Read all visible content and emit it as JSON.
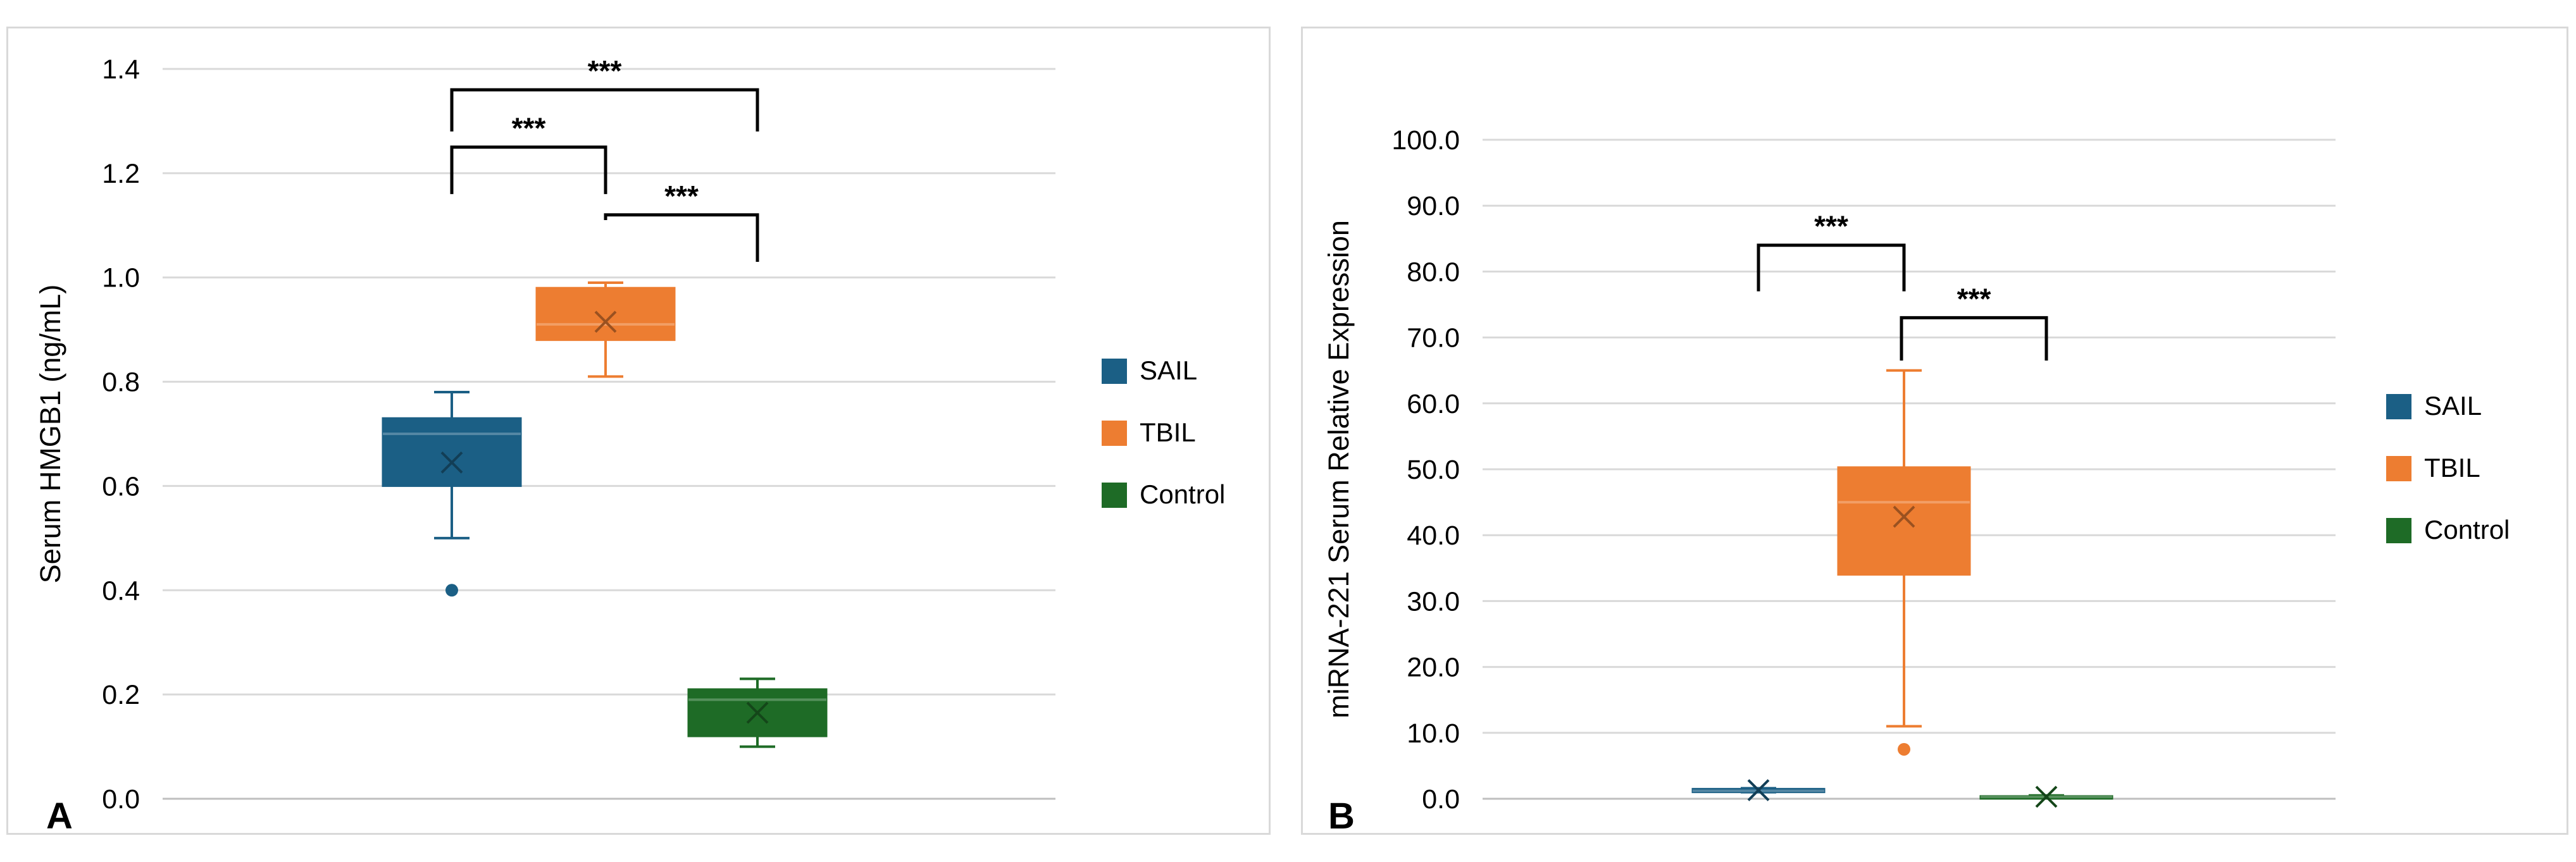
{
  "colors": {
    "SAIL": "#1b5f85",
    "TBIL": "#ed7d31",
    "Control": "#1e6b26"
  },
  "legend": [
    "SAIL",
    "TBIL",
    "Control"
  ],
  "chart_data": [
    {
      "type": "box",
      "panel_label": "A",
      "ylabel": "Serum HMGB1 (ng/mL)",
      "ylim": [
        0,
        1.4
      ],
      "ytick_labels": [
        "0.0",
        "0.2",
        "0.4",
        "0.6",
        "0.8",
        "1.0",
        "1.2",
        "1.4"
      ],
      "yticks": [
        0,
        0.2,
        0.4,
        0.6,
        0.8,
        1.0,
        1.2,
        1.4
      ],
      "grid": true,
      "legend_position": "right",
      "series": [
        {
          "name": "SAIL",
          "whisker_low": 0.5,
          "q1": 0.6,
          "median": 0.7,
          "q3": 0.73,
          "whisker_high": 0.78,
          "mean": 0.645,
          "outliers": [
            0.4
          ]
        },
        {
          "name": "TBIL",
          "whisker_low": 0.81,
          "q1": 0.88,
          "median": 0.91,
          "q3": 0.98,
          "whisker_high": 0.99,
          "mean": 0.915,
          "outliers": []
        },
        {
          "name": "Control",
          "whisker_low": 0.1,
          "q1": 0.12,
          "median": 0.19,
          "q3": 0.21,
          "whisker_high": 0.23,
          "mean": 0.165,
          "outliers": []
        }
      ],
      "significance": [
        {
          "from": 0,
          "to": 1,
          "left_end": 1.16,
          "top": 1.25,
          "right_end": 1.16,
          "label": "***"
        },
        {
          "from": 1,
          "to": 2,
          "left_end": 1.11,
          "top": 1.12,
          "right_end": 1.03,
          "label": "***"
        },
        {
          "from": 0,
          "to": 2,
          "left_end": 1.28,
          "top": 1.36,
          "right_end": 1.28,
          "label": "***"
        }
      ]
    },
    {
      "type": "box",
      "panel_label": "B",
      "ylabel": "miRNA-221 Serum Relative Expression",
      "ylim": [
        0,
        100
      ],
      "ytick_labels": [
        "0.0",
        "10.0",
        "20.0",
        "30.0",
        "40.0",
        "50.0",
        "60.0",
        "70.0",
        "80.0",
        "90.0",
        "100.0"
      ],
      "yticks": [
        0,
        10,
        20,
        30,
        40,
        50,
        60,
        70,
        80,
        90,
        100
      ],
      "grid": true,
      "legend_position": "right",
      "series": [
        {
          "name": "SAIL",
          "whisker_low": 1.0,
          "q1": 1.0,
          "median": 1.2,
          "q3": 1.5,
          "whisker_high": 1.6,
          "mean": 1.3,
          "outliers": []
        },
        {
          "name": "TBIL",
          "whisker_low": 11.0,
          "q1": 34.0,
          "median": 45.0,
          "q3": 50.3,
          "whisker_high": 65.0,
          "mean": 42.8,
          "outliers": [
            7.5
          ]
        },
        {
          "name": "Control",
          "whisker_low": 0.1,
          "q1": 0.2,
          "median": 0.3,
          "q3": 0.4,
          "whisker_high": 0.5,
          "mean": 0.3,
          "outliers": []
        }
      ],
      "significance": [
        {
          "from": 0,
          "to": 1,
          "left_end": 77.0,
          "top": 84.0,
          "right_end": 77.0,
          "label": "***"
        },
        {
          "from": 1,
          "to": 2,
          "left_end": 66.5,
          "top": 73.0,
          "right_end": 66.5,
          "label": "***"
        }
      ]
    }
  ]
}
